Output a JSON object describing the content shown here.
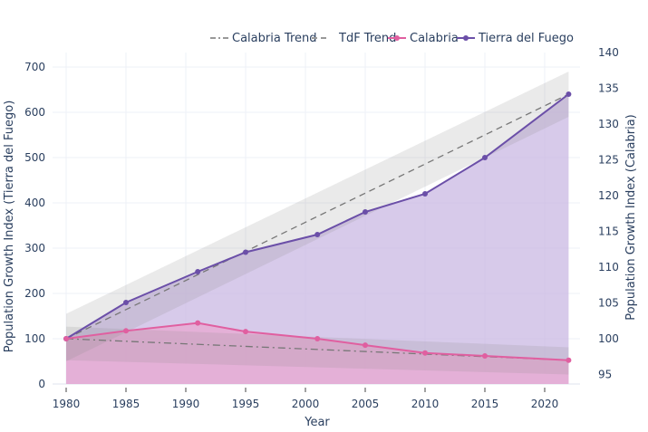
{
  "chart_data": {
    "type": "line",
    "xlabel": "Year",
    "ylabel_left": "Population Growth Index (Tierra del Fuego)",
    "ylabel_right": "Population Growth Index (Calabria)",
    "x_ticks": [
      1980,
      1985,
      1990,
      1995,
      2000,
      2005,
      2010,
      2015,
      2020
    ],
    "xlim": [
      1979,
      2024
    ],
    "ylim_left": [
      -10,
      740
    ],
    "ylim_right": [
      93.5,
      140
    ],
    "y_ticks_left": [
      0,
      100,
      200,
      300,
      400,
      500,
      600,
      700
    ],
    "y_ticks_right": [
      95,
      100,
      105,
      110,
      115,
      120,
      125,
      130,
      135,
      140
    ],
    "grid": true,
    "legend_position": "top",
    "legend": [
      "Calabria Trend",
      "TdF Trend",
      "Calabria",
      "Tierra del Fuego"
    ],
    "series": [
      {
        "name": "Tierra del Fuego",
        "axis": "left",
        "color": "#6b4fa8",
        "fill": "#c9b8e3",
        "x": [
          1980,
          1985,
          1991,
          1995,
          2001,
          2005,
          2010,
          2015,
          2022
        ],
        "y": [
          100,
          180,
          248,
          291,
          330,
          380,
          420,
          500,
          640
        ]
      },
      {
        "name": "Calabria",
        "axis": "right",
        "color": "#e05fa0",
        "fill": "#e7a9d2",
        "x": [
          1980,
          1985,
          1991,
          1995,
          2001,
          2005,
          2010,
          2015,
          2022
        ],
        "y": [
          100,
          101.1,
          102.2,
          101,
          100,
          99.1,
          98,
          97.6,
          97
        ]
      }
    ],
    "trends": [
      {
        "name": "Calabria Trend",
        "axis": "right",
        "dash": "dashdot",
        "x": [
          1980,
          2022
        ],
        "y": [
          100,
          97
        ],
        "band_lower": [
          97,
          95
        ],
        "band_upper": [
          101.7,
          98.8
        ]
      },
      {
        "name": "TdF Trend",
        "axis": "left",
        "dash": "dash",
        "x": [
          1980,
          2022
        ],
        "y": [
          100,
          640
        ],
        "band_lower": [
          50,
          590
        ],
        "band_upper": [
          155,
          690
        ]
      }
    ]
  }
}
